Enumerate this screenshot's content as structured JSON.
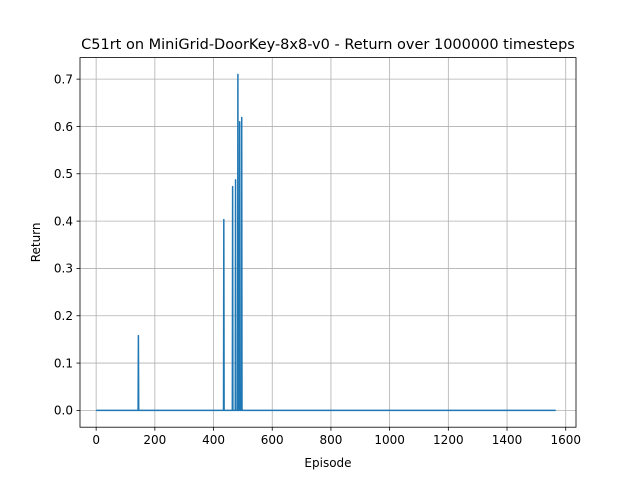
{
  "chart_data": {
    "type": "line",
    "title": "C51rt on MiniGrid-DoorKey-8x8-v0 - Return over 1000000 timesteps",
    "xlabel": "Episode",
    "ylabel": "Return",
    "xlim": [
      -55,
      1635
    ],
    "ylim": [
      -0.0355,
      0.7455
    ],
    "xticks": [
      0,
      200,
      400,
      600,
      800,
      1000,
      1200,
      1400,
      1600
    ],
    "yticks": [
      0.0,
      0.1,
      0.2,
      0.3,
      0.4,
      0.5,
      0.6,
      0.7
    ],
    "xtick_labels": [
      "0",
      "200",
      "400",
      "600",
      "800",
      "1000",
      "1200",
      "1400",
      "1600"
    ],
    "ytick_labels": [
      "0.0",
      "0.1",
      "0.2",
      "0.3",
      "0.4",
      "0.5",
      "0.6",
      "0.7"
    ],
    "grid": true,
    "colors": {
      "series": "#1f77b4",
      "grid": "#b0b0b0",
      "axis": "#000000"
    },
    "series": [
      {
        "x": [
          0,
          143,
          144,
          145,
          434,
          435,
          436,
          464,
          465,
          466,
          474,
          475,
          476,
          482,
          483,
          484,
          488,
          489,
          490,
          495,
          496,
          497,
          1566
        ],
        "values": [
          0,
          0,
          0.158,
          0,
          0,
          0.403,
          0,
          0,
          0.473,
          0,
          0,
          0.487,
          0,
          0,
          0.71,
          0,
          0,
          0.61,
          0,
          0,
          0.619,
          0,
          0
        ]
      }
    ]
  }
}
